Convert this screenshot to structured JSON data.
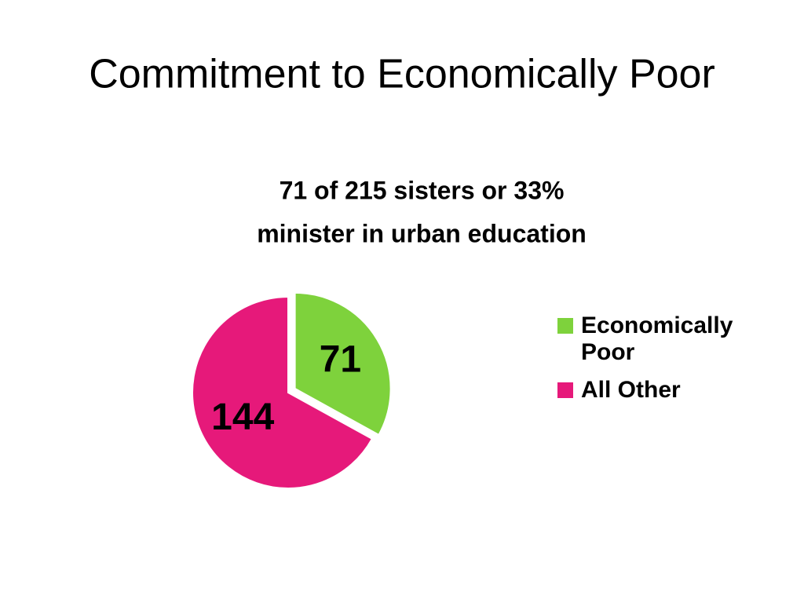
{
  "chart_data": {
    "type": "pie",
    "title": "Commitment to Economically Poor",
    "subtitle": [
      "71 of 215 sisters or 33%",
      "minister in urban education"
    ],
    "categories": [
      "Economically Poor",
      "All Other"
    ],
    "values": [
      71,
      144
    ],
    "colors": [
      "#7ed23c",
      "#e6197a"
    ],
    "legend": "right"
  }
}
